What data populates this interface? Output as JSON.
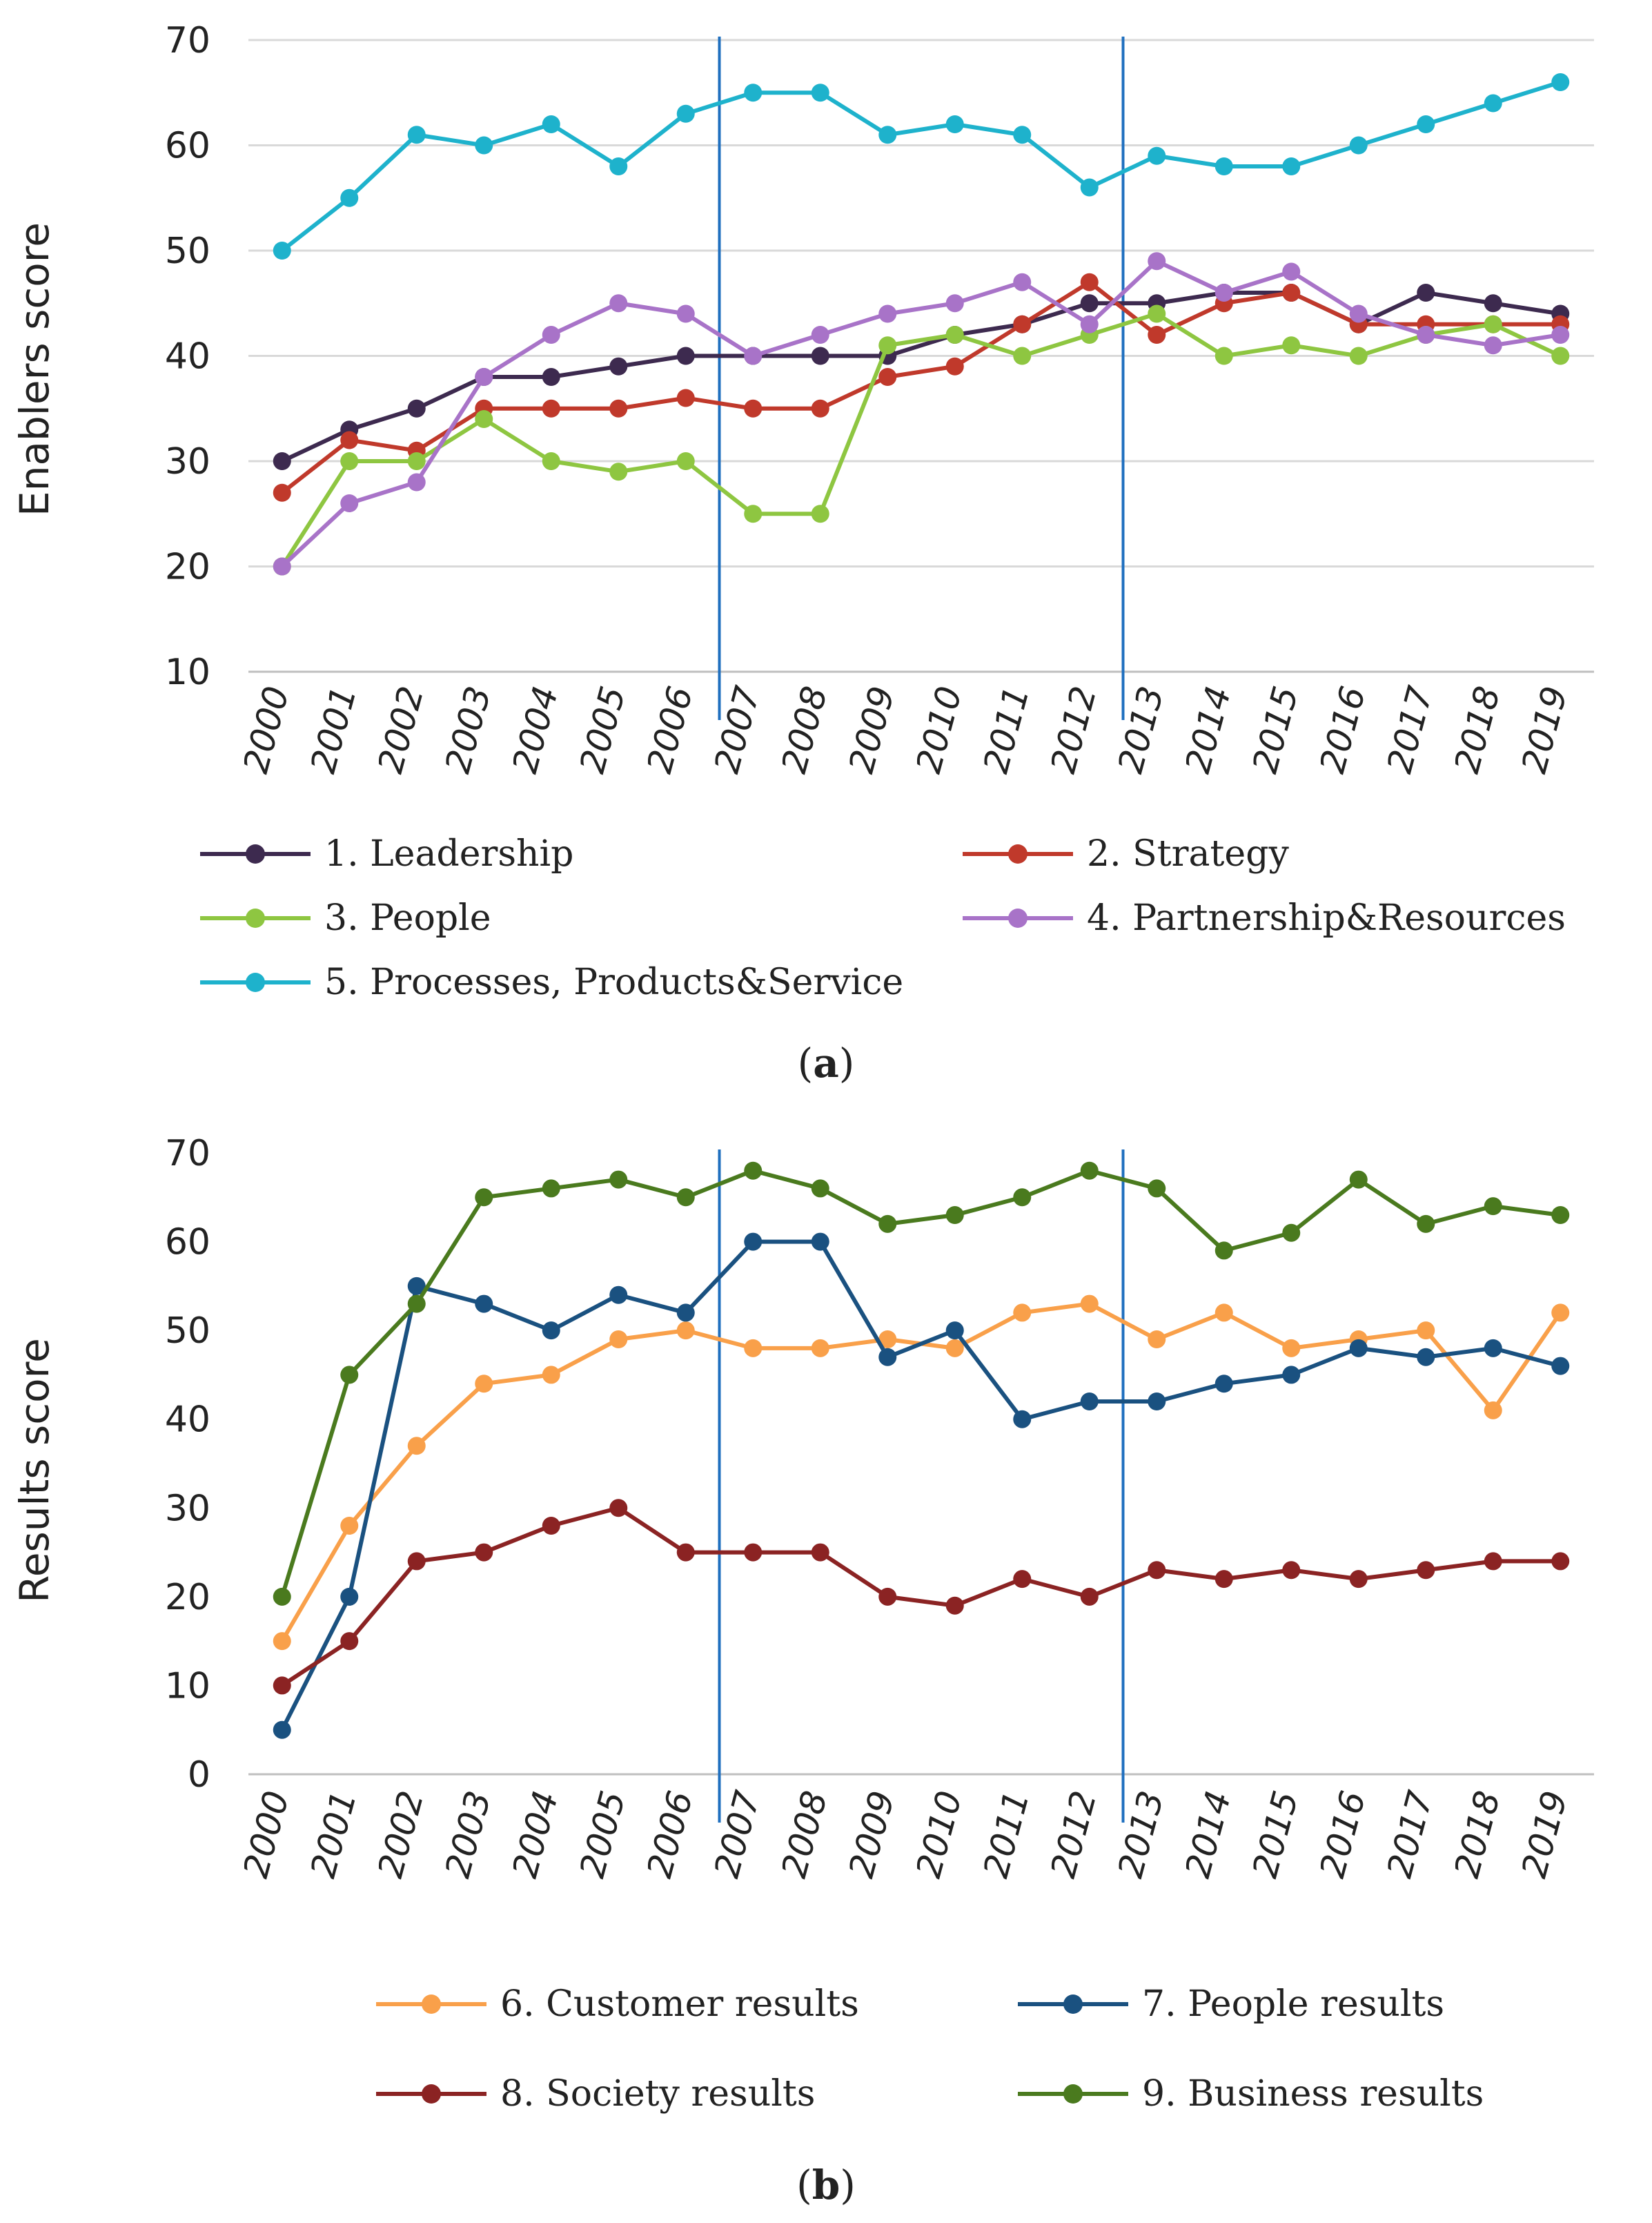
{
  "chart_data": [
    {
      "type": "line",
      "panel_label": "a",
      "ylabel": "Enablers score",
      "xlabel": "",
      "ylim": [
        10,
        70
      ],
      "yticks": [
        10,
        20,
        30,
        40,
        50,
        60,
        70
      ],
      "grid": true,
      "categories": [
        "2000",
        "2001",
        "2002",
        "2003",
        "2004",
        "2005",
        "2006",
        "2007",
        "2008",
        "2009",
        "2010",
        "2011",
        "2012",
        "2013",
        "2014",
        "2015",
        "2016",
        "2017",
        "2018",
        "2019"
      ],
      "vertical_markers": [
        "2006.5",
        "2012.5"
      ],
      "series": [
        {
          "name": "1. Leadership",
          "color": "#3d2a4f",
          "values": [
            30,
            33,
            35,
            38,
            38,
            39,
            40,
            40,
            40,
            40,
            42,
            43,
            45,
            45,
            46,
            46,
            43,
            46,
            45,
            44
          ]
        },
        {
          "name": "2. Strategy",
          "color": "#c0392b",
          "values": [
            27,
            32,
            31,
            35,
            35,
            35,
            36,
            35,
            35,
            38,
            39,
            43,
            47,
            42,
            45,
            46,
            43,
            43,
            43,
            43
          ]
        },
        {
          "name": "3. People",
          "color": "#8ec641",
          "values": [
            20,
            30,
            30,
            34,
            30,
            29,
            30,
            25,
            25,
            41,
            42,
            40,
            42,
            44,
            40,
            41,
            40,
            42,
            43,
            40
          ]
        },
        {
          "name": "4. Partnership&Resources",
          "color": "#a873c8",
          "values": [
            20,
            26,
            28,
            38,
            42,
            45,
            44,
            40,
            42,
            44,
            45,
            47,
            43,
            49,
            46,
            48,
            44,
            42,
            41,
            42
          ]
        },
        {
          "name": "5. Processes, Products&Service",
          "color": "#1eb2cc",
          "values": [
            50,
            55,
            61,
            60,
            62,
            58,
            63,
            65,
            65,
            61,
            62,
            61,
            56,
            59,
            58,
            58,
            60,
            62,
            64,
            66
          ]
        }
      ]
    },
    {
      "type": "line",
      "panel_label": "b",
      "ylabel": "Results score",
      "xlabel": "",
      "ylim": [
        0,
        70
      ],
      "yticks": [
        0,
        10,
        20,
        30,
        40,
        50,
        60,
        70
      ],
      "grid": false,
      "categories": [
        "2000",
        "2001",
        "2002",
        "2003",
        "2004",
        "2005",
        "2006",
        "2007",
        "2008",
        "2009",
        "2010",
        "2011",
        "2012",
        "2013",
        "2014",
        "2015",
        "2016",
        "2017",
        "2018",
        "2019"
      ],
      "vertical_markers": [
        "2006.5",
        "2012.5"
      ],
      "series": [
        {
          "name": "6. Customer results",
          "color": "#f9a04a",
          "values": [
            15,
            28,
            37,
            44,
            45,
            49,
            50,
            48,
            48,
            49,
            48,
            52,
            53,
            49,
            52,
            48,
            49,
            50,
            41,
            52
          ]
        },
        {
          "name": "7. People results",
          "color": "#1a5180",
          "values": [
            5,
            20,
            55,
            53,
            50,
            54,
            52,
            60,
            60,
            47,
            50,
            40,
            42,
            42,
            44,
            45,
            48,
            47,
            48,
            46
          ]
        },
        {
          "name": "8. Society results",
          "color": "#8b2323",
          "values": [
            10,
            15,
            24,
            25,
            28,
            30,
            25,
            25,
            25,
            20,
            19,
            22,
            20,
            23,
            22,
            23,
            22,
            23,
            24,
            24
          ]
        },
        {
          "name": "9. Business results",
          "color": "#4a7a1e",
          "values": [
            20,
            45,
            53,
            65,
            66,
            67,
            65,
            68,
            66,
            62,
            63,
            65,
            68,
            66,
            59,
            61,
            67,
            62,
            64,
            63
          ]
        }
      ]
    }
  ]
}
